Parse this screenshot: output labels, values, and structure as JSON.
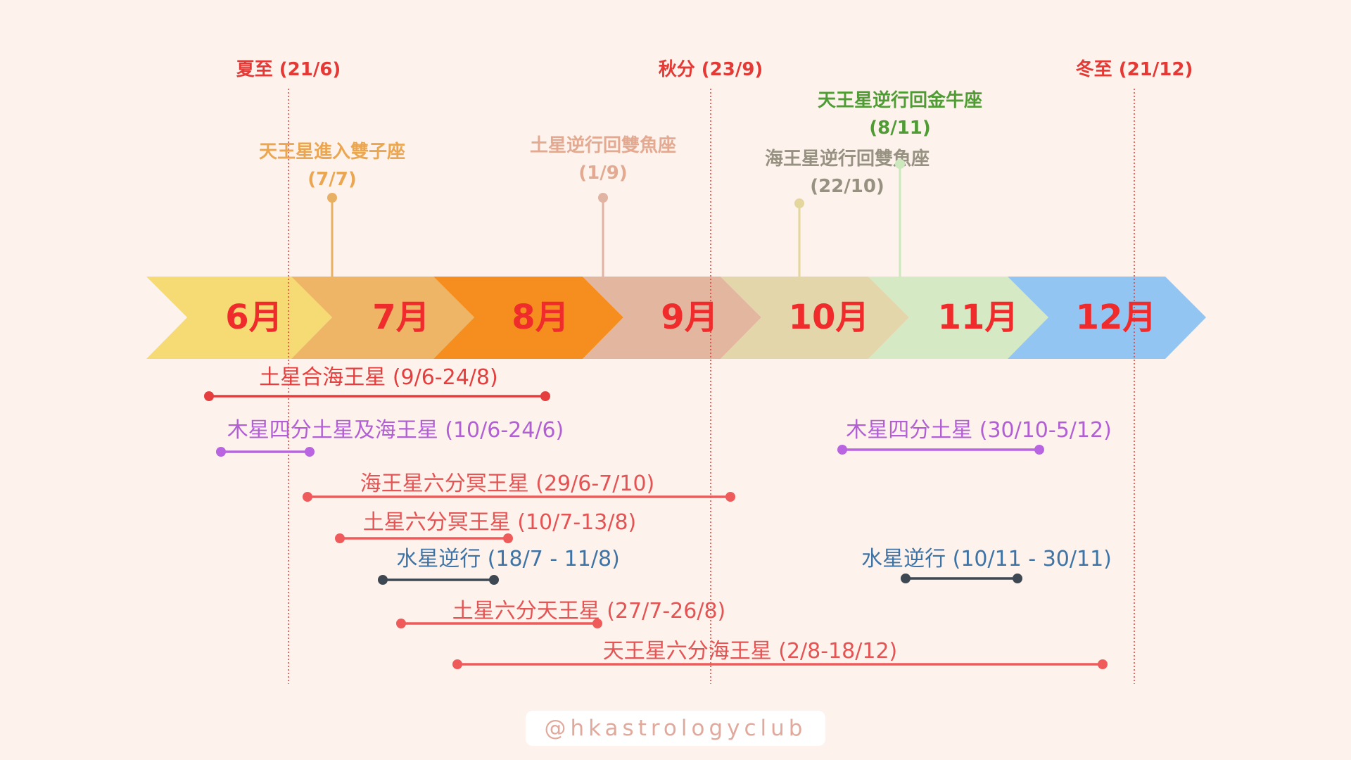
{
  "seasons": [
    {
      "label": "夏至 (21/6)",
      "color": "#e53935"
    },
    {
      "label": "秋分 (23/9)",
      "color": "#e53935"
    },
    {
      "label": "冬至 (21/12)",
      "color": "#e53935"
    }
  ],
  "months": [
    {
      "label": "6月",
      "fill": "#f6da74",
      "text": "#ef2b2b"
    },
    {
      "label": "7月",
      "fill": "#eeb567",
      "text": "#ef2b2b"
    },
    {
      "label": "8月",
      "fill": "#f58e1e",
      "text": "#ef2b2b"
    },
    {
      "label": "9月",
      "fill": "#e3b6a0",
      "text": "#ef2b2b"
    },
    {
      "label": "10月",
      "fill": "#e4d6ab",
      "text": "#ef2b2b"
    },
    {
      "label": "11月",
      "fill": "#d4e9c4",
      "text": "#ef2b2b"
    },
    {
      "label": "12月",
      "fill": "#93c5f2",
      "text": "#ef2b2b"
    }
  ],
  "events": [
    {
      "name": "天王星進入雙子座",
      "date": "(7/7)",
      "color": "#eba651",
      "line": "#e8b062"
    },
    {
      "name": "土星逆行回雙魚座",
      "date": "(1/9)",
      "color": "#e3a991",
      "line": "#e0b3a2"
    },
    {
      "name": "海王星逆行回雙魚座",
      "date": "(22/10)",
      "color": "#969181",
      "line": "#e4d79e"
    },
    {
      "name": "天王星逆行回金牛座",
      "date": "(8/11)",
      "color": "#4f9c35",
      "line": "#cce8bd"
    }
  ],
  "aspects": [
    {
      "label": "土星合海王星 (9/6-24/8)",
      "color": "#e53e3e",
      "line": "#e53e3e"
    },
    {
      "label": "木星四分土星及海王星 (10/6-24/6)",
      "color": "#b25fd5",
      "line": "#b964e0"
    },
    {
      "label": "木星四分土星 (30/10-5/12)",
      "color": "#b25fd5",
      "line": "#b964e0"
    },
    {
      "label": "海王星六分冥王星 (29/6-7/10)",
      "color": "#e55454",
      "line": "#ef5b5b"
    },
    {
      "label": "土星六分冥王星 (10/7-13/8)",
      "color": "#e55454",
      "line": "#ef5b5b"
    },
    {
      "label": "水星逆行 (18/7 - 11/8)",
      "color": "#3e73a6",
      "line": "#3d4853"
    },
    {
      "label": "水星逆行 (10/11 - 30/11)",
      "color": "#3e73a6",
      "line": "#3d4853"
    },
    {
      "label": "土星六分天王星 (27/7-26/8)",
      "color": "#e55454",
      "line": "#ef5b5b"
    },
    {
      "label": "天王星六分海王星 (2/8-18/12)",
      "color": "#e55454",
      "line": "#ef5b5b"
    }
  ],
  "footer": {
    "handle": "@hkastrologyclub"
  }
}
